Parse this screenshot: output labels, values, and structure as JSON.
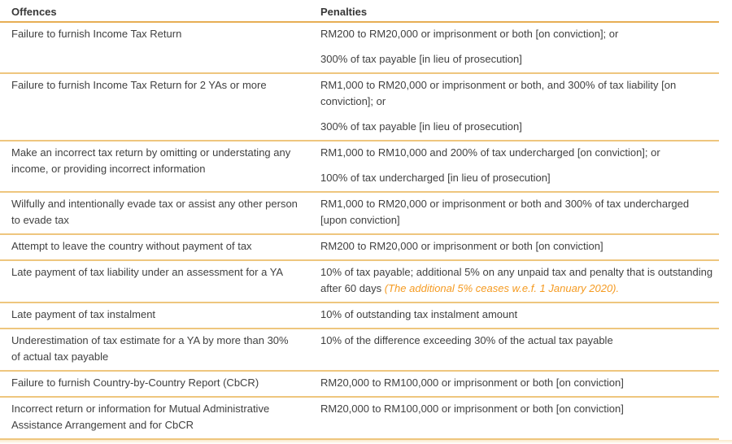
{
  "table": {
    "headers": {
      "offences": "Offences",
      "penalties": "Penalties"
    },
    "rows": [
      {
        "offence": "Failure to furnish Income Tax Return",
        "penalties": [
          "RM200 to RM20,000 or imprisonment or both [on conviction]; or",
          "300% of tax payable [in lieu of prosecution]"
        ]
      },
      {
        "offence": "Failure to furnish Income Tax Return for 2 YAs or more",
        "penalties": [
          "RM1,000 to RM20,000 or imprisonment or both, and 300% of tax liability [on conviction]; or",
          "300% of tax payable [in lieu of prosecution]"
        ]
      },
      {
        "offence": "Make an incorrect tax return by omitting or understating any income, or providing incorrect information",
        "penalties": [
          "RM1,000 to RM10,000 and 200% of tax undercharged [on conviction]; or",
          "100% of tax undercharged [in lieu of prosecution]"
        ]
      },
      {
        "offence": "Wilfully and intentionally evade tax or assist any other person to evade tax",
        "penalties": [
          "RM1,000 to RM20,000 or imprisonment or both and 300% of tax undercharged [upon conviction]"
        ]
      },
      {
        "offence": "Attempt to leave the country without payment of tax",
        "penalties": [
          "RM200 to RM20,000 or imprisonment or both [on conviction]"
        ]
      },
      {
        "offence": "Late payment of tax liability under an assessment for a YA",
        "penalty_text": "10% of tax payable; additional 5% on any unpaid tax and penalty that is outstanding after 60 days ",
        "penalty_note": "(The additional 5% ceases w.e.f. 1 January 2020)."
      },
      {
        "offence": "Late payment of tax instalment",
        "penalties": [
          "10% of outstanding tax instalment amount"
        ]
      },
      {
        "offence": "Underestimation of tax estimate for a YA by more than 30% of actual tax payable",
        "penalties": [
          "10% of the difference exceeding 30% of the actual tax payable"
        ]
      },
      {
        "offence": "Failure to furnish Country-by-Country Report (CbCR)",
        "penalties": [
          "RM20,000 to RM100,000 or imprisonment or both [on conviction]"
        ]
      },
      {
        "offence": "Incorrect return or information for Mutual Administrative Assistance Arrangement and for CbCR",
        "penalties": [
          "RM20,000 to RM100,000 or imprisonment or both [on conviction]"
        ]
      }
    ],
    "colors": {
      "separator": "#eec67e",
      "header_rule": "#e7ae54",
      "bottom_rule": "#e5a040",
      "text": "#414141",
      "note_orange": "#f59b22"
    }
  }
}
